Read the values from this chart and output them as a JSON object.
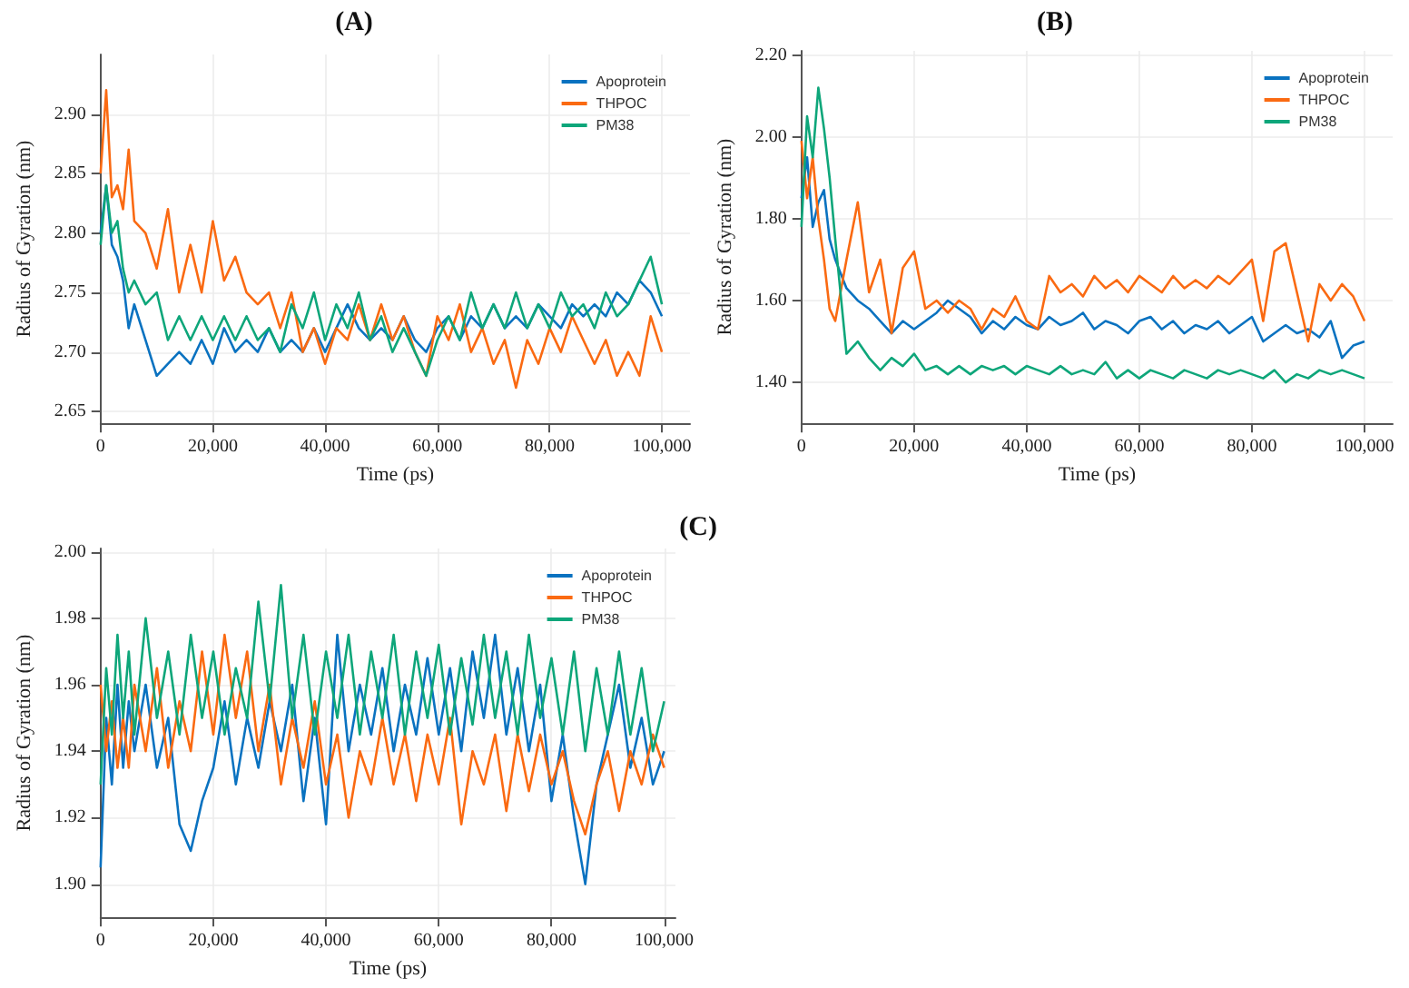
{
  "chart_data": [
    {
      "type": "line",
      "title": "(A)",
      "xlabel": "Time (ps)",
      "ylabel": "Radius of Gyration (nm)",
      "x": [
        0,
        1000,
        2000,
        3000,
        4000,
        5000,
        6000,
        8000,
        10000,
        12000,
        14000,
        16000,
        18000,
        20000,
        22000,
        24000,
        26000,
        28000,
        30000,
        32000,
        34000,
        36000,
        38000,
        40000,
        42000,
        44000,
        46000,
        48000,
        50000,
        52000,
        54000,
        56000,
        58000,
        60000,
        62000,
        64000,
        66000,
        68000,
        70000,
        72000,
        74000,
        76000,
        78000,
        80000,
        82000,
        84000,
        86000,
        88000,
        90000,
        92000,
        94000,
        96000,
        98000,
        100000
      ],
      "series": [
        {
          "name": "Apoprotein",
          "color": "#0a72c0",
          "values": [
            2.8,
            2.84,
            2.79,
            2.78,
            2.76,
            2.72,
            2.74,
            2.71,
            2.68,
            2.69,
            2.7,
            2.69,
            2.71,
            2.69,
            2.72,
            2.7,
            2.71,
            2.7,
            2.72,
            2.7,
            2.71,
            2.7,
            2.72,
            2.7,
            2.72,
            2.74,
            2.72,
            2.71,
            2.72,
            2.71,
            2.73,
            2.71,
            2.7,
            2.72,
            2.73,
            2.71,
            2.73,
            2.72,
            2.74,
            2.72,
            2.73,
            2.72,
            2.74,
            2.73,
            2.72,
            2.74,
            2.73,
            2.74,
            2.73,
            2.75,
            2.74,
            2.76,
            2.75,
            2.73
          ]
        },
        {
          "name": "THPOC",
          "color": "#fa6a12",
          "values": [
            2.85,
            2.92,
            2.83,
            2.84,
            2.82,
            2.87,
            2.81,
            2.8,
            2.77,
            2.82,
            2.75,
            2.79,
            2.75,
            2.81,
            2.76,
            2.78,
            2.75,
            2.74,
            2.75,
            2.72,
            2.75,
            2.7,
            2.72,
            2.69,
            2.72,
            2.71,
            2.74,
            2.71,
            2.74,
            2.71,
            2.73,
            2.7,
            2.68,
            2.73,
            2.71,
            2.74,
            2.7,
            2.72,
            2.69,
            2.71,
            2.67,
            2.71,
            2.69,
            2.72,
            2.7,
            2.73,
            2.71,
            2.69,
            2.71,
            2.68,
            2.7,
            2.68,
            2.73,
            2.7
          ]
        },
        {
          "name": "PM38",
          "color": "#0ea67a",
          "values": [
            2.79,
            2.84,
            2.8,
            2.81,
            2.77,
            2.75,
            2.76,
            2.74,
            2.75,
            2.71,
            2.73,
            2.71,
            2.73,
            2.71,
            2.73,
            2.71,
            2.73,
            2.71,
            2.72,
            2.7,
            2.74,
            2.72,
            2.75,
            2.71,
            2.74,
            2.72,
            2.75,
            2.71,
            2.73,
            2.7,
            2.72,
            2.7,
            2.68,
            2.71,
            2.73,
            2.71,
            2.75,
            2.72,
            2.74,
            2.72,
            2.75,
            2.72,
            2.74,
            2.72,
            2.75,
            2.73,
            2.74,
            2.72,
            2.75,
            2.73,
            2.74,
            2.76,
            2.78,
            2.74
          ]
        }
      ],
      "xlim": [
        0,
        105000
      ],
      "xticks": [
        {
          "value": 0,
          "label": "0"
        },
        {
          "value": 20000,
          "label": "20,000"
        },
        {
          "value": 40000,
          "label": "40,000"
        },
        {
          "value": 60000,
          "label": "60,000"
        },
        {
          "value": 80000,
          "label": "80,000"
        },
        {
          "value": 100000,
          "label": "100,000"
        }
      ],
      "ylim": [
        2.64,
        2.95
      ],
      "yticks": [
        2.65,
        {
          "value": 2.7,
          "label": "2.70"
        },
        2.75,
        {
          "value": 2.8,
          "label": "2.80"
        },
        2.85,
        {
          "value": 2.9,
          "label": "2.90"
        }
      ],
      "grid": true,
      "legend": "top right"
    },
    {
      "type": "line",
      "title": "(B)",
      "xlabel": "Time (ps)",
      "ylabel": "Radius of Gyration (nm)",
      "x": [
        0,
        1000,
        2000,
        3000,
        4000,
        5000,
        6000,
        8000,
        10000,
        12000,
        14000,
        16000,
        18000,
        20000,
        22000,
        24000,
        26000,
        28000,
        30000,
        32000,
        34000,
        36000,
        38000,
        40000,
        42000,
        44000,
        46000,
        48000,
        50000,
        52000,
        54000,
        56000,
        58000,
        60000,
        62000,
        64000,
        66000,
        68000,
        70000,
        72000,
        74000,
        76000,
        78000,
        80000,
        82000,
        84000,
        86000,
        88000,
        90000,
        92000,
        94000,
        96000,
        98000,
        100000
      ],
      "series": [
        {
          "name": "Apoprotein",
          "color": "#0a72c0",
          "values": [
            1.85,
            1.95,
            1.78,
            1.84,
            1.87,
            1.75,
            1.7,
            1.63,
            1.6,
            1.58,
            1.55,
            1.52,
            1.55,
            1.53,
            1.55,
            1.57,
            1.6,
            1.58,
            1.56,
            1.52,
            1.55,
            1.53,
            1.56,
            1.54,
            1.53,
            1.56,
            1.54,
            1.55,
            1.57,
            1.53,
            1.55,
            1.54,
            1.52,
            1.55,
            1.56,
            1.53,
            1.55,
            1.52,
            1.54,
            1.53,
            1.55,
            1.52,
            1.54,
            1.56,
            1.5,
            1.52,
            1.54,
            1.52,
            1.53,
            1.51,
            1.55,
            1.46,
            1.49,
            1.5
          ]
        },
        {
          "name": "THPOC",
          "color": "#fa6a12",
          "values": [
            1.99,
            1.85,
            1.95,
            1.8,
            1.7,
            1.58,
            1.55,
            1.7,
            1.84,
            1.62,
            1.7,
            1.52,
            1.68,
            1.72,
            1.58,
            1.6,
            1.57,
            1.6,
            1.58,
            1.53,
            1.58,
            1.56,
            1.61,
            1.55,
            1.53,
            1.66,
            1.62,
            1.64,
            1.61,
            1.66,
            1.63,
            1.65,
            1.62,
            1.66,
            1.64,
            1.62,
            1.66,
            1.63,
            1.65,
            1.63,
            1.66,
            1.64,
            1.67,
            1.7,
            1.55,
            1.72,
            1.74,
            1.62,
            1.5,
            1.64,
            1.6,
            1.64,
            1.61,
            1.55
          ]
        },
        {
          "name": "PM38",
          "color": "#0ea67a",
          "values": [
            1.78,
            2.05,
            1.95,
            2.12,
            2.02,
            1.9,
            1.75,
            1.47,
            1.5,
            1.46,
            1.43,
            1.46,
            1.44,
            1.47,
            1.43,
            1.44,
            1.42,
            1.44,
            1.42,
            1.44,
            1.43,
            1.44,
            1.42,
            1.44,
            1.43,
            1.42,
            1.44,
            1.42,
            1.43,
            1.42,
            1.45,
            1.41,
            1.43,
            1.41,
            1.43,
            1.42,
            1.41,
            1.43,
            1.42,
            1.41,
            1.43,
            1.42,
            1.43,
            1.42,
            1.41,
            1.43,
            1.4,
            1.42,
            1.41,
            1.43,
            1.42,
            1.43,
            1.42,
            1.41
          ]
        }
      ],
      "xlim": [
        0,
        105000
      ],
      "xticks": [
        {
          "value": 0,
          "label": "0"
        },
        {
          "value": 20000,
          "label": "20,000"
        },
        {
          "value": 40000,
          "label": "40,000"
        },
        {
          "value": 60000,
          "label": "60,000"
        },
        {
          "value": 80000,
          "label": "80,000"
        },
        {
          "value": 100000,
          "label": "100,000"
        }
      ],
      "ylim": [
        1.3,
        2.21
      ],
      "yticks": [
        {
          "value": 1.4,
          "label": "1.40"
        },
        {
          "value": 1.6,
          "label": "1.60"
        },
        {
          "value": 1.8,
          "label": "1.80"
        },
        {
          "value": 2.0,
          "label": "2.00"
        },
        {
          "value": 2.2,
          "label": "2.20"
        }
      ],
      "grid": true,
      "legend": "top right"
    },
    {
      "type": "line",
      "title": "(C)",
      "xlabel": "Time (ps)",
      "ylabel": "Radius of Gyration (nm)",
      "x": [
        0,
        1000,
        2000,
        3000,
        4000,
        5000,
        6000,
        8000,
        10000,
        12000,
        14000,
        16000,
        18000,
        20000,
        22000,
        24000,
        26000,
        28000,
        30000,
        32000,
        34000,
        36000,
        38000,
        40000,
        42000,
        44000,
        46000,
        48000,
        50000,
        52000,
        54000,
        56000,
        58000,
        60000,
        62000,
        64000,
        66000,
        68000,
        70000,
        72000,
        74000,
        76000,
        78000,
        80000,
        82000,
        84000,
        86000,
        88000,
        90000,
        92000,
        94000,
        96000,
        98000,
        100000
      ],
      "series": [
        {
          "name": "Apoprotein",
          "color": "#0a72c0",
          "values": [
            1.905,
            1.95,
            1.93,
            1.96,
            1.935,
            1.955,
            1.94,
            1.96,
            1.935,
            1.95,
            1.918,
            1.91,
            1.925,
            1.935,
            1.955,
            1.93,
            1.95,
            1.935,
            1.955,
            1.94,
            1.96,
            1.925,
            1.95,
            1.918,
            1.975,
            1.94,
            1.96,
            1.945,
            1.965,
            1.94,
            1.96,
            1.945,
            1.968,
            1.945,
            1.965,
            1.94,
            1.97,
            1.95,
            1.975,
            1.945,
            1.965,
            1.94,
            1.96,
            1.925,
            1.945,
            1.92,
            1.9,
            1.93,
            1.945,
            1.96,
            1.935,
            1.95,
            1.93,
            1.94
          ]
        },
        {
          "name": "THPOC",
          "color": "#fa6a12",
          "values": [
            1.96,
            1.94,
            1.955,
            1.935,
            1.95,
            1.935,
            1.96,
            1.94,
            1.965,
            1.935,
            1.955,
            1.94,
            1.97,
            1.945,
            1.975,
            1.95,
            1.97,
            1.94,
            1.96,
            1.93,
            1.95,
            1.935,
            1.955,
            1.93,
            1.945,
            1.92,
            1.94,
            1.93,
            1.95,
            1.93,
            1.945,
            1.925,
            1.945,
            1.93,
            1.95,
            1.918,
            1.94,
            1.93,
            1.945,
            1.922,
            1.945,
            1.928,
            1.945,
            1.93,
            1.94,
            1.925,
            1.915,
            1.93,
            1.94,
            1.922,
            1.94,
            1.93,
            1.945,
            1.935
          ]
        },
        {
          "name": "PM38",
          "color": "#0ea67a",
          "values": [
            1.93,
            1.965,
            1.945,
            1.975,
            1.95,
            1.97,
            1.945,
            1.98,
            1.95,
            1.97,
            1.945,
            1.975,
            1.95,
            1.97,
            1.945,
            1.965,
            1.95,
            1.985,
            1.955,
            1.99,
            1.95,
            1.975,
            1.945,
            1.97,
            1.95,
            1.975,
            1.945,
            1.97,
            1.95,
            1.975,
            1.945,
            1.97,
            1.95,
            1.972,
            1.945,
            1.968,
            1.948,
            1.975,
            1.95,
            1.97,
            1.945,
            1.975,
            1.95,
            1.968,
            1.945,
            1.97,
            1.94,
            1.965,
            1.945,
            1.97,
            1.945,
            1.965,
            1.94,
            1.955
          ]
        }
      ],
      "xlim": [
        0,
        102000
      ],
      "xticks": [
        {
          "value": 0,
          "label": "0"
        },
        {
          "value": 20000,
          "label": "20,000"
        },
        {
          "value": 40000,
          "label": "40,000"
        },
        {
          "value": 60000,
          "label": "60,000"
        },
        {
          "value": 80000,
          "label": "80,000"
        },
        {
          "value": 100000,
          "label": "100,000"
        }
      ],
      "ylim": [
        1.89,
        2.001
      ],
      "yticks": [
        {
          "value": 1.9,
          "label": "1.90"
        },
        1.92,
        1.94,
        1.96,
        1.98,
        {
          "value": 2.0,
          "label": "2.00"
        }
      ],
      "grid": true,
      "legend": "top right"
    }
  ]
}
